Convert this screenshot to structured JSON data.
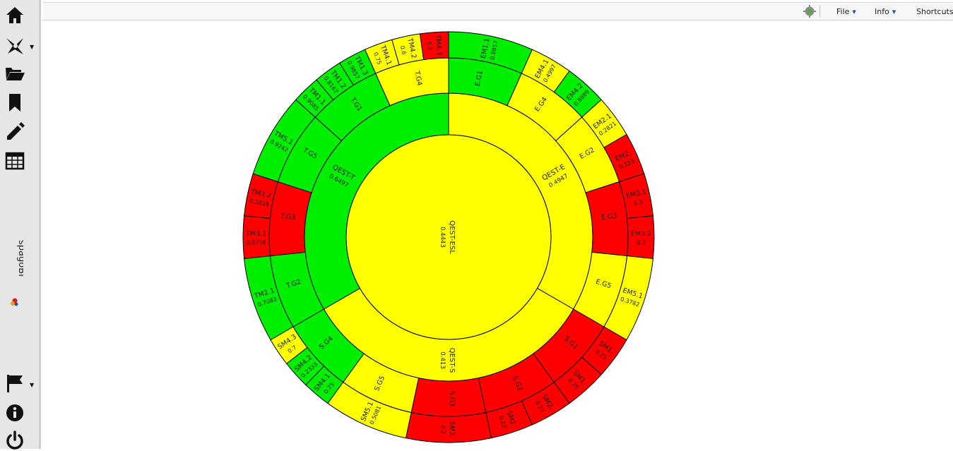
{
  "topbar": {
    "menus": [
      {
        "label": "File",
        "has_dropdown": true
      },
      {
        "label": "Info",
        "has_dropdown": true
      },
      {
        "label": "Shortcuts",
        "has_dropdown": false
      }
    ],
    "icons": [
      "gear-icon"
    ]
  },
  "sidebar": {
    "items": [
      {
        "name": "home",
        "icon": "home-icon"
      },
      {
        "name": "network",
        "icon": "network-icon",
        "has_dropdown": true
      },
      {
        "name": "open",
        "icon": "folder-open-icon"
      },
      {
        "name": "bookmark",
        "icon": "bookmark-icon"
      },
      {
        "name": "edit",
        "icon": "pencil-icon"
      },
      {
        "name": "table",
        "icon": "table-icon"
      },
      {
        "name": "flag",
        "icon": "flag-icon",
        "has_dropdown": true
      },
      {
        "name": "info",
        "icon": "info-icon"
      },
      {
        "name": "power",
        "icon": "power-icon"
      }
    ],
    "brand": "spagoBI"
  },
  "colors": {
    "good": "#00ee00",
    "medium": "#ffff00",
    "bad": "#ff0000",
    "stroke": "#000000"
  },
  "chart_data": {
    "type": "sunburst",
    "root": {
      "label": "QEST-ESL",
      "value": "0.4443",
      "color": "medium"
    },
    "level1": [
      {
        "label": "QEST-E",
        "value": "0.4947",
        "start": 0,
        "end": 120,
        "color": "medium"
      },
      {
        "label": "QEST-S",
        "value": "0.413",
        "start": 120,
        "end": 240,
        "color": "medium"
      },
      {
        "label": "QEST-T",
        "value": "0.6497",
        "start": 240,
        "end": 360,
        "color": "good"
      }
    ],
    "level2": [
      {
        "label": "E.G1",
        "start": 0,
        "end": 24,
        "color": "good"
      },
      {
        "label": "E.G4",
        "start": 24,
        "end": 48,
        "color": "medium"
      },
      {
        "label": "E.G2",
        "start": 48,
        "end": 72,
        "color": "medium"
      },
      {
        "label": "E.G3",
        "start": 72,
        "end": 96,
        "color": "bad"
      },
      {
        "label": "E.G5",
        "start": 96,
        "end": 120,
        "color": "medium"
      },
      {
        "label": "S.G1",
        "start": 120,
        "end": 144,
        "color": "bad"
      },
      {
        "label": "S.G2",
        "start": 144,
        "end": 168,
        "color": "bad"
      },
      {
        "label": "S.G3",
        "start": 168,
        "end": 192,
        "color": "bad"
      },
      {
        "label": "S.G5",
        "start": 192,
        "end": 216,
        "color": "medium"
      },
      {
        "label": "S.G4",
        "start": 216,
        "end": 240,
        "color": "good"
      },
      {
        "label": "T.G2",
        "start": 240,
        "end": 264,
        "color": "good"
      },
      {
        "label": "T.G3",
        "start": 264,
        "end": 288,
        "color": "bad"
      },
      {
        "label": "T.G5",
        "start": 288,
        "end": 312,
        "color": "good"
      },
      {
        "label": "T.G1",
        "start": 312,
        "end": 336,
        "color": "good"
      },
      {
        "label": "T.G4",
        "start": 336,
        "end": 360,
        "color": "medium"
      }
    ],
    "level3": [
      {
        "label": "EM1.1",
        "value": "0.8857",
        "start": 0,
        "end": 24,
        "color": "good"
      },
      {
        "label": "EM4.1",
        "value": "0.4997",
        "start": 24,
        "end": 36,
        "color": "medium"
      },
      {
        "label": "EM4.2",
        "value": "0.8889",
        "start": 36,
        "end": 48,
        "color": "good"
      },
      {
        "label": "EM2.1",
        "value": "0.2821",
        "start": 48,
        "end": 60,
        "color": "medium"
      },
      {
        "label": "EM2.",
        "value": "0.123",
        "start": 60,
        "end": 72,
        "color": "bad"
      },
      {
        "label": "EM3.1",
        "value": "0.3",
        "start": 72,
        "end": 84,
        "color": "bad"
      },
      {
        "label": "EM3.2",
        "value": "0.2",
        "start": 84,
        "end": 96,
        "color": "bad"
      },
      {
        "label": "EM5.1",
        "value": "0.3782",
        "start": 96,
        "end": 120,
        "color": "medium"
      },
      {
        "label": "SM1.",
        "value": "0.25",
        "start": 120,
        "end": 132,
        "color": "bad"
      },
      {
        "label": "SM1.",
        "value": "0.25",
        "start": 132,
        "end": 144,
        "color": "bad"
      },
      {
        "label": "SM2.",
        "value": "0.22",
        "start": 144,
        "end": 156,
        "color": "bad"
      },
      {
        "label": "SM2.",
        "value": "0.22",
        "start": 156,
        "end": 168,
        "color": "bad"
      },
      {
        "label": "SM3.",
        "value": "0.2",
        "start": 168,
        "end": 192,
        "color": "bad"
      },
      {
        "label": "SM5.1",
        "value": "0.5081",
        "start": 192,
        "end": 216,
        "color": "medium"
      },
      {
        "label": "SM4.1",
        "value": "0.75",
        "start": 216,
        "end": 224,
        "color": "good"
      },
      {
        "label": "SM4.2",
        "value": "0.2333",
        "start": 224,
        "end": 232,
        "color": "good"
      },
      {
        "label": "SM4.3",
        "value": "0.7",
        "start": 232,
        "end": 240,
        "color": "medium"
      },
      {
        "label": "TM2.1",
        "value": "0.7083",
        "start": 240,
        "end": 264,
        "color": "good"
      },
      {
        "label": "TM3.1",
        "value": "0.0738",
        "start": 264,
        "end": 276,
        "color": "bad"
      },
      {
        "label": "TM3.2",
        "value": "0.2038",
        "start": 276,
        "end": 288,
        "color": "bad"
      },
      {
        "label": "TM5.1",
        "value": "0.9242",
        "start": 288,
        "end": 312,
        "color": "good"
      },
      {
        "label": "TM1.1",
        "value": "0.9085",
        "start": 312,
        "end": 320,
        "color": "good"
      },
      {
        "label": "TM1.2",
        "value": "0.8167",
        "start": 320,
        "end": 328,
        "color": "good"
      },
      {
        "label": "TM1.3",
        "value": "0.9857",
        "start": 328,
        "end": 336,
        "color": "good"
      },
      {
        "label": "TM4.1",
        "value": "0.75",
        "start": 336,
        "end": 344,
        "color": "medium"
      },
      {
        "label": "TM4.2",
        "value": "0.6",
        "start": 344,
        "end": 352,
        "color": "medium"
      },
      {
        "label": "TM4.3",
        "value": "0.2",
        "start": 352,
        "end": 360,
        "color": "bad"
      }
    ]
  }
}
